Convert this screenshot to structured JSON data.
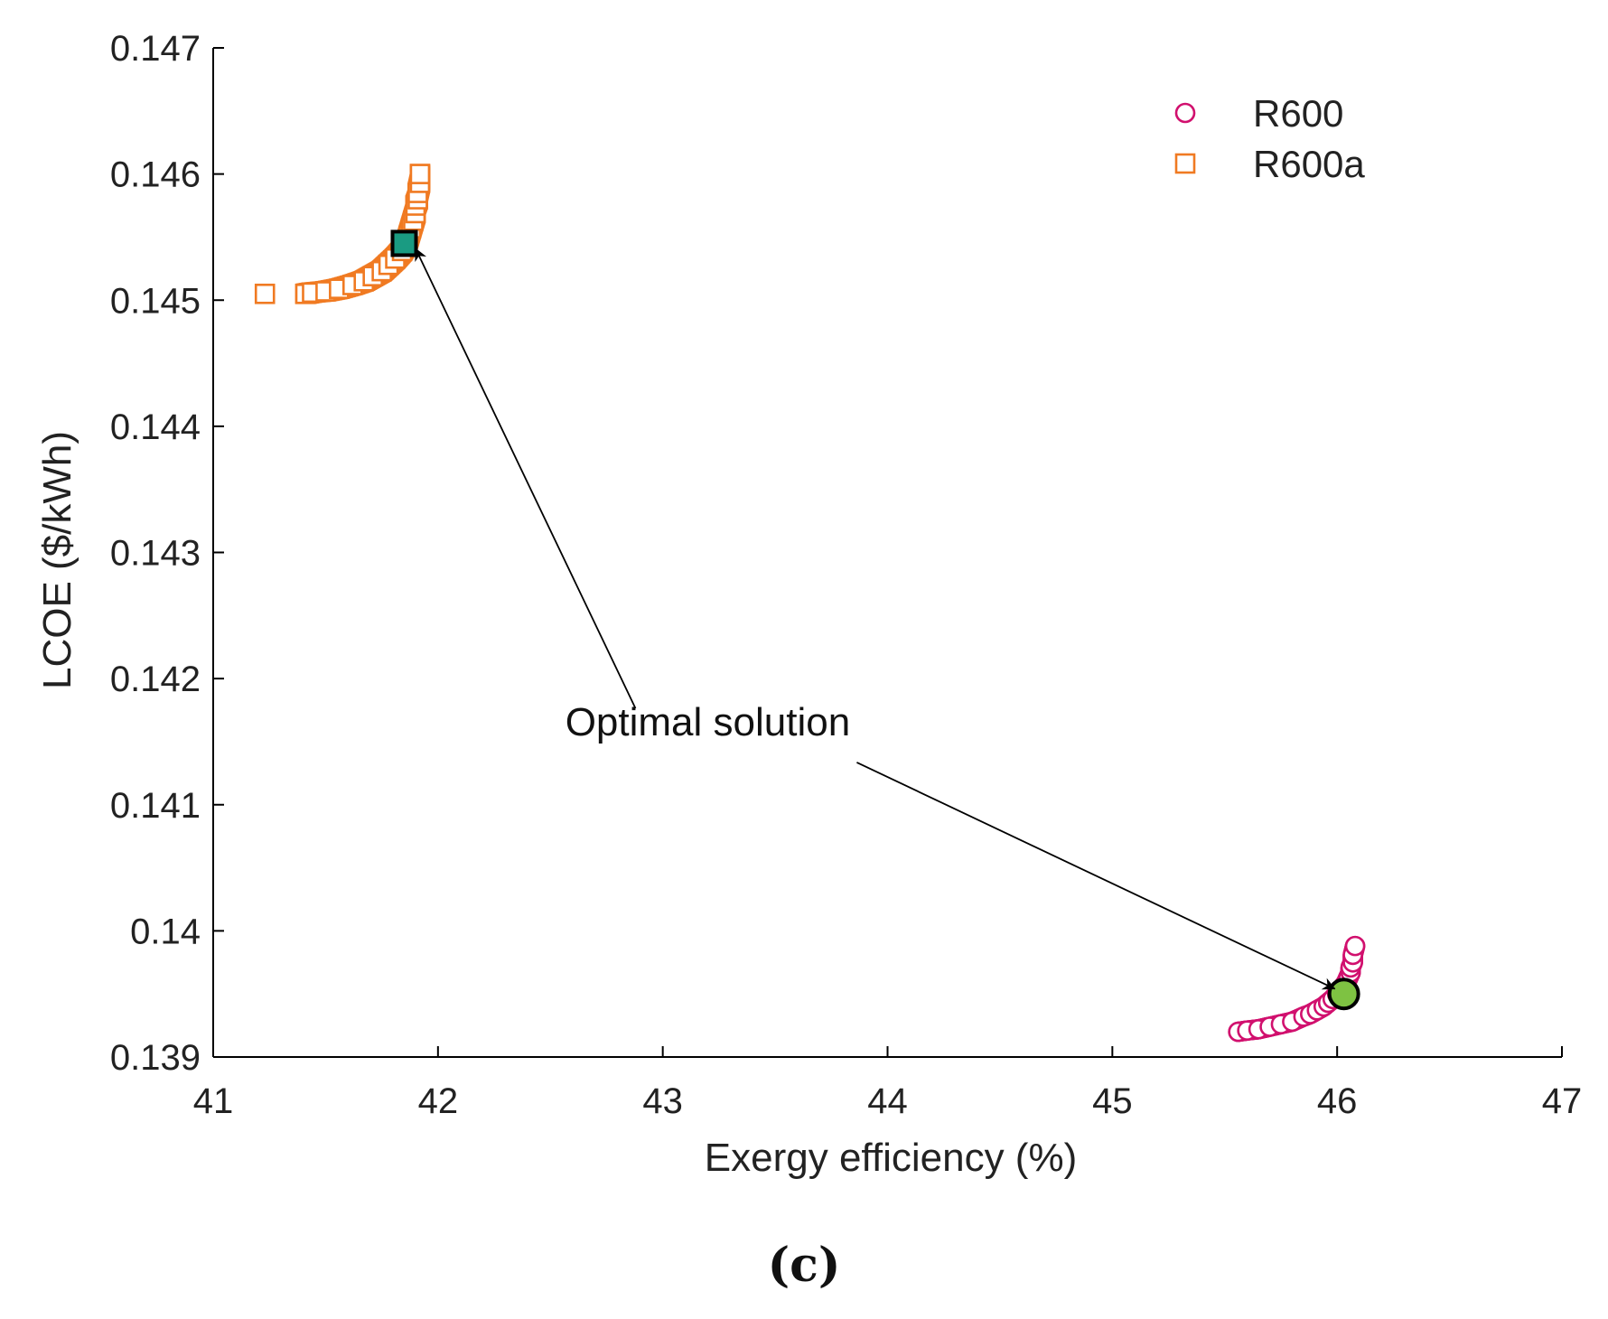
{
  "chart_data": {
    "type": "scatter",
    "title": "",
    "xlabel": "Exergy efficiency (%)",
    "ylabel": "LCOE ($/kWh)",
    "xlim": [
      41,
      47
    ],
    "ylim": [
      0.139,
      0.147
    ],
    "xticks": [
      41,
      42,
      43,
      44,
      45,
      46,
      47
    ],
    "xtick_labels": [
      "41",
      "42",
      "43",
      "44",
      "45",
      "46",
      "47"
    ],
    "yticks": [
      0.139,
      0.14,
      0.141,
      0.142,
      0.143,
      0.144,
      0.145,
      0.146,
      0.147
    ],
    "ytick_labels": [
      "0.139",
      "0.14",
      "0.141",
      "0.142",
      "0.143",
      "0.144",
      "0.145",
      "0.146",
      "0.147"
    ],
    "grid": false,
    "legend_position": "top-right",
    "series": [
      {
        "name": "R600",
        "marker": "circle",
        "color": "#d1106e",
        "x": [
          45.56,
          45.6,
          45.65,
          45.7,
          45.75,
          45.8,
          45.85,
          45.88,
          45.91,
          45.94,
          45.96,
          45.98,
          46.0,
          46.02,
          46.04,
          46.05,
          46.06,
          46.06,
          46.07,
          46.07,
          46.08
        ],
        "y": [
          0.1392,
          0.13921,
          0.13922,
          0.13924,
          0.13926,
          0.13928,
          0.13932,
          0.13934,
          0.13937,
          0.1394,
          0.13943,
          0.13946,
          0.1395,
          0.13954,
          0.13959,
          0.13963,
          0.13967,
          0.13971,
          0.13975,
          0.13981,
          0.13988
        ]
      },
      {
        "name": "R600a",
        "marker": "square",
        "color": "#f07a22",
        "x": [
          41.23,
          41.41,
          41.44,
          41.5,
          41.56,
          41.62,
          41.67,
          41.71,
          41.75,
          41.78,
          41.81,
          41.84,
          41.86,
          41.87,
          41.88,
          41.89,
          41.9,
          41.9,
          41.91,
          41.91,
          41.92,
          41.92
        ],
        "y": [
          0.14505,
          0.14505,
          0.14506,
          0.14507,
          0.14509,
          0.14512,
          0.14515,
          0.14519,
          0.14523,
          0.14528,
          0.14533,
          0.14539,
          0.14545,
          0.14551,
          0.14557,
          0.14563,
          0.14569,
          0.14575,
          0.1458,
          0.14585,
          0.14593,
          0.146
        ]
      }
    ],
    "highlighted_points": [
      {
        "series": "R600a",
        "x": 41.85,
        "y": 0.14545,
        "marker": "square",
        "fill": "#1a9b82"
      },
      {
        "series": "R600",
        "x": 46.03,
        "y": 0.1395,
        "marker": "circle",
        "fill": "#7ec242"
      }
    ],
    "annotation": {
      "text": "Optimal solution",
      "x": 43.2,
      "y": 0.14155,
      "arrow_targets": [
        {
          "x": 41.9,
          "y": 0.14541
        },
        {
          "x": 45.99,
          "y": 0.13954
        }
      ]
    },
    "panel_label": "(c)"
  }
}
